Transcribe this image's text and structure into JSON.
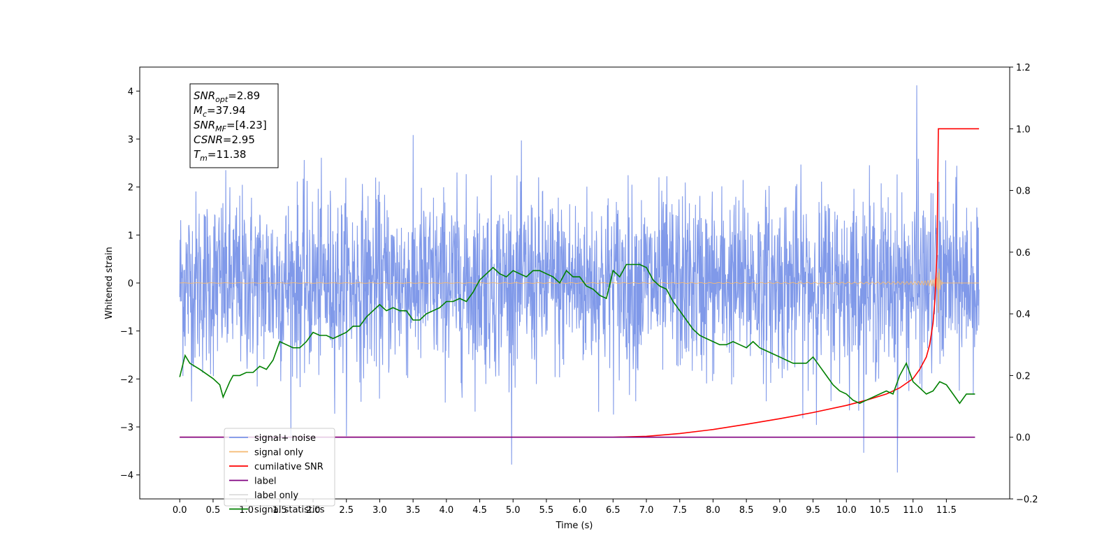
{
  "chart_data": {
    "type": "line",
    "title": "",
    "xlabel": "Time (s)",
    "ylabel": "Whitened strain",
    "xlim": [
      -0.6,
      12.45
    ],
    "ylim": [
      -4.5,
      4.5
    ],
    "y2lim": [
      -0.2,
      1.2
    ],
    "grid": false,
    "legend_placement": "lower-left",
    "x_ticks": [
      "0.0",
      "0.5",
      "1.0",
      "1.5",
      "2.0",
      "2.5",
      "3.0",
      "3.5",
      "4.0",
      "4.5",
      "5.0",
      "5.5",
      "6.0",
      "6.5",
      "7.0",
      "7.5",
      "8.0",
      "8.5",
      "9.0",
      "9.5",
      "10.0",
      "10.5",
      "11.0",
      "11.5"
    ],
    "y_ticks": [
      "4",
      "3",
      "2",
      "1",
      "0",
      "−1",
      "−2",
      "−3",
      "−4"
    ],
    "y2_ticks": [
      "1.2",
      "1.0",
      "0.8",
      "0.6",
      "0.4",
      "0.2",
      "0.0",
      "−0.2"
    ],
    "info_box": [
      {
        "base": "SNR",
        "sub": "opt",
        "value": "=2.89"
      },
      {
        "base": "M",
        "sub": "c",
        "value": "=37.94"
      },
      {
        "base": "SNR",
        "sub": "MF",
        "value": "=[4.23]"
      },
      {
        "base": "CSNR",
        "sub": "",
        "value": "=2.95"
      },
      {
        "base": "T",
        "sub": "m",
        "value": "=11.38"
      }
    ],
    "series": [
      {
        "name": "signal+ noise",
        "color": "#7994e8",
        "axis": "left",
        "kind": "noise",
        "x_range": [
          0.0,
          11.99
        ],
        "typical_envelope": [
          -1.6,
          1.6
        ],
        "peak_min": -3.95,
        "peak_max": 4.12
      },
      {
        "name": "signal only",
        "color": "#f5b971",
        "axis": "left",
        "kind": "chirp",
        "x_range": [
          0.0,
          11.99
        ],
        "merger_time": 11.38,
        "peak_max": 0.55,
        "peak_min": -0.65
      },
      {
        "name": "cumilative SNR",
        "color": "#ff0000",
        "axis": "right",
        "x": [
          0.0,
          6.5,
          7.0,
          7.5,
          8.0,
          8.5,
          9.0,
          9.5,
          10.0,
          10.3,
          10.6,
          10.8,
          11.0,
          11.1,
          11.2,
          11.25,
          11.3,
          11.33,
          11.36,
          11.38,
          11.99
        ],
        "values": [
          0.0,
          0.0,
          0.003,
          0.012,
          0.025,
          0.042,
          0.06,
          0.08,
          0.103,
          0.12,
          0.14,
          0.16,
          0.19,
          0.22,
          0.26,
          0.3,
          0.37,
          0.45,
          0.6,
          1.0,
          1.0
        ]
      },
      {
        "name": "label",
        "color": "#800080",
        "axis": "right",
        "x": [
          0.0,
          11.93
        ],
        "values": [
          0.0,
          0.0
        ]
      },
      {
        "name": "label only",
        "color": "#dcdcdc",
        "axis": "right",
        "x": [],
        "values": []
      },
      {
        "name": "signal statistics",
        "color": "#008000",
        "axis": "right",
        "x": [
          0.0,
          0.08,
          0.15,
          0.3,
          0.5,
          0.6,
          0.65,
          0.75,
          0.8,
          0.9,
          1.0,
          1.1,
          1.2,
          1.3,
          1.4,
          1.5,
          1.6,
          1.7,
          1.8,
          1.9,
          2.0,
          2.1,
          2.2,
          2.3,
          2.4,
          2.5,
          2.6,
          2.7,
          2.8,
          2.9,
          3.0,
          3.1,
          3.2,
          3.3,
          3.4,
          3.5,
          3.6,
          3.7,
          3.8,
          3.9,
          4.0,
          4.1,
          4.2,
          4.3,
          4.4,
          4.5,
          4.6,
          4.7,
          4.8,
          4.9,
          5.0,
          5.1,
          5.2,
          5.3,
          5.4,
          5.5,
          5.6,
          5.7,
          5.8,
          5.9,
          6.0,
          6.1,
          6.2,
          6.3,
          6.4,
          6.5,
          6.6,
          6.7,
          6.8,
          6.9,
          7.0,
          7.1,
          7.2,
          7.3,
          7.4,
          7.5,
          7.6,
          7.7,
          7.8,
          7.9,
          8.0,
          8.1,
          8.2,
          8.3,
          8.4,
          8.5,
          8.6,
          8.7,
          8.8,
          8.9,
          9.0,
          9.1,
          9.2,
          9.3,
          9.4,
          9.5,
          9.6,
          9.7,
          9.8,
          9.9,
          10.0,
          10.1,
          10.2,
          10.3,
          10.4,
          10.5,
          10.6,
          10.7,
          10.8,
          10.9,
          11.0,
          11.1,
          11.2,
          11.3,
          11.4,
          11.5,
          11.6,
          11.7,
          11.8,
          11.93
        ],
        "values": [
          0.195,
          0.265,
          0.24,
          0.22,
          0.19,
          0.17,
          0.13,
          0.18,
          0.2,
          0.2,
          0.21,
          0.21,
          0.23,
          0.22,
          0.25,
          0.31,
          0.3,
          0.29,
          0.29,
          0.31,
          0.34,
          0.33,
          0.33,
          0.32,
          0.33,
          0.34,
          0.36,
          0.36,
          0.39,
          0.41,
          0.43,
          0.41,
          0.42,
          0.41,
          0.41,
          0.38,
          0.38,
          0.4,
          0.41,
          0.42,
          0.44,
          0.44,
          0.45,
          0.44,
          0.47,
          0.51,
          0.53,
          0.55,
          0.53,
          0.52,
          0.54,
          0.53,
          0.52,
          0.54,
          0.54,
          0.53,
          0.52,
          0.5,
          0.54,
          0.52,
          0.52,
          0.49,
          0.48,
          0.46,
          0.45,
          0.54,
          0.52,
          0.56,
          0.56,
          0.56,
          0.55,
          0.51,
          0.49,
          0.48,
          0.44,
          0.41,
          0.38,
          0.35,
          0.33,
          0.32,
          0.31,
          0.3,
          0.3,
          0.31,
          0.3,
          0.29,
          0.31,
          0.29,
          0.28,
          0.27,
          0.26,
          0.25,
          0.24,
          0.24,
          0.24,
          0.26,
          0.23,
          0.2,
          0.17,
          0.15,
          0.14,
          0.12,
          0.11,
          0.12,
          0.13,
          0.14,
          0.15,
          0.14,
          0.2,
          0.24,
          0.18,
          0.16,
          0.14,
          0.15,
          0.18,
          0.17,
          0.14,
          0.11,
          0.14,
          0.14
        ]
      }
    ]
  }
}
